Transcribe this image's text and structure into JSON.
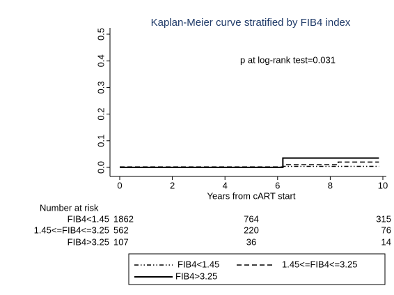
{
  "chart_data": {
    "type": "line",
    "title": "Kaplan-Meier curve stratified by FIB4 index",
    "annotation": "p at log-rank test=0.031",
    "x_label": "Years from cART start",
    "xlim": [
      0,
      10
    ],
    "xticks": [
      0,
      2,
      4,
      6,
      8,
      10
    ],
    "ylim": [
      0,
      0.5
    ],
    "yticks": [
      {
        "value": 0,
        "label": "0.0"
      },
      {
        "value": 0.1,
        "label": "0.1"
      },
      {
        "value": 0.2,
        "label": "0.2"
      },
      {
        "value": 0.3,
        "label": "0.3"
      },
      {
        "value": 0.4,
        "label": "0.4"
      },
      {
        "value": 0.5,
        "label": "0.5"
      }
    ],
    "series": [
      {
        "name": "FIB4<1.45",
        "color": "#000000",
        "dash": "6 3 1.5 3 1.5 3",
        "x": [
          0,
          6.2,
          6.2,
          9.85
        ],
        "values": [
          0,
          0,
          0.004,
          0.004
        ]
      },
      {
        "name": "1.45<=FIB4<=3.25",
        "color": "#000000",
        "dash": "7 4",
        "x": [
          0,
          6.2,
          6.2,
          8.3,
          8.3,
          9.85
        ],
        "values": [
          0.002,
          0.002,
          0.01,
          0.01,
          0.02,
          0.02
        ]
      },
      {
        "name": "FIB4>3.25",
        "color": "#000000",
        "dash": "none",
        "x": [
          0,
          6.2,
          6.2,
          9.85
        ],
        "values": [
          0,
          0,
          0.035,
          0.035
        ]
      }
    ],
    "risk_table": {
      "title": "Number at risk",
      "rows": [
        {
          "label": "FIB4<1.45",
          "values": [
            1862,
            764,
            315
          ]
        },
        {
          "label": "1.45<=FIB4<=3.25",
          "values": [
            562,
            220,
            76
          ]
        },
        {
          "label": "FIB4>3.25",
          "values": [
            107,
            36,
            14
          ]
        }
      ]
    }
  }
}
